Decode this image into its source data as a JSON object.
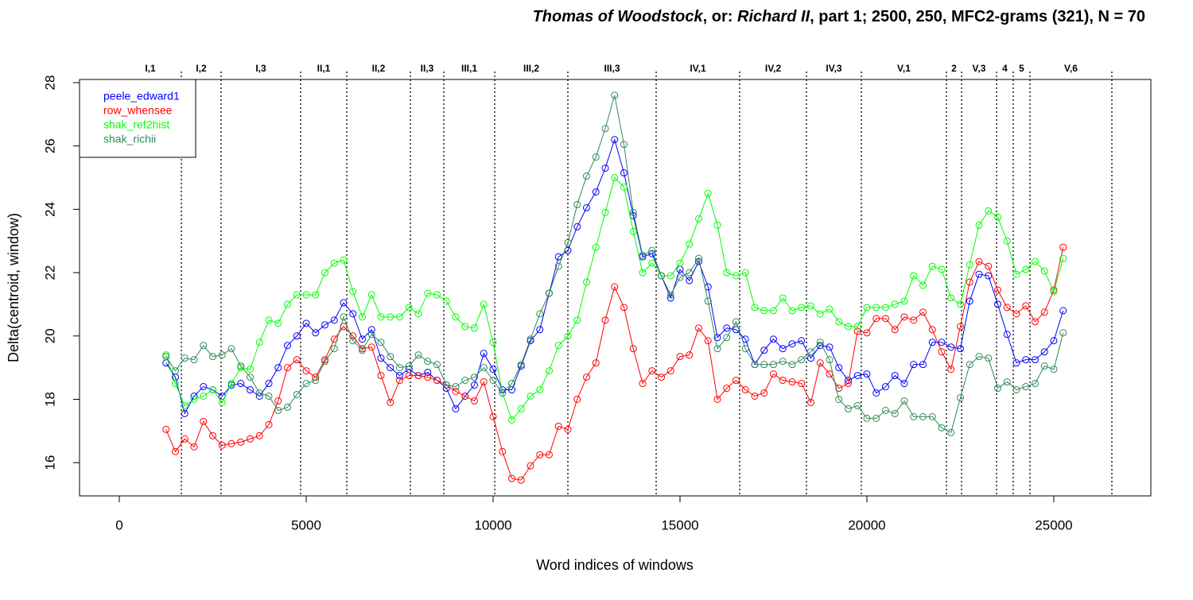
{
  "chart_data": {
    "type": "line",
    "title_parts": [
      {
        "text": "Thomas of Woodstock",
        "italic": true
      },
      {
        "text": ", or: ",
        "italic": false
      },
      {
        "text": "Richard II",
        "italic": true
      },
      {
        "text": ", part 1; 2500, 250, MFC2-grams (321), N = 70",
        "italic": false
      }
    ],
    "x_label": "Word indices of windows",
    "y_label": "Delta(centroid, window)",
    "xlim": [
      -1064,
      27596
    ],
    "ylim": [
      14.95,
      28.1
    ],
    "xticks": [
      0,
      5000,
      10000,
      15000,
      20000,
      25000
    ],
    "yticks": [
      16,
      18,
      20,
      22,
      24,
      26,
      28
    ],
    "legend": "top-left",
    "scenes": [
      {
        "label": "I,1",
        "start": 0,
        "end": 1660
      },
      {
        "label": "I,2",
        "start": 1660,
        "end": 2723
      },
      {
        "label": "I,3",
        "start": 2723,
        "end": 4851
      },
      {
        "label": "II,1",
        "start": 4851,
        "end": 6085
      },
      {
        "label": "II,2",
        "start": 6085,
        "end": 7787
      },
      {
        "label": "II,3",
        "start": 7787,
        "end": 8681
      },
      {
        "label": "III,1",
        "start": 8681,
        "end": 10043
      },
      {
        "label": "III,2",
        "start": 10043,
        "end": 12000
      },
      {
        "label": "III,3",
        "start": 12000,
        "end": 14362
      },
      {
        "label": "IV,1",
        "start": 14362,
        "end": 16596
      },
      {
        "label": "IV,2",
        "start": 16596,
        "end": 18383
      },
      {
        "label": "IV,3",
        "start": 18383,
        "end": 19851
      },
      {
        "label": "V,1",
        "start": 19851,
        "end": 22128
      },
      {
        "label": "2",
        "start": 22128,
        "end": 22532
      },
      {
        "label": "V,3",
        "start": 22532,
        "end": 23468
      },
      {
        "label": "4",
        "start": 23468,
        "end": 23915
      },
      {
        "label": "5",
        "start": 23915,
        "end": 24362
      },
      {
        "label": "V,6",
        "start": 24362,
        "end": 26553
      }
    ],
    "x": [
      1250,
      1500,
      1750,
      2000,
      2250,
      2500,
      2750,
      3000,
      3250,
      3500,
      3750,
      4000,
      4250,
      4500,
      4750,
      5000,
      5250,
      5500,
      5750,
      6000,
      6250,
      6500,
      6750,
      7000,
      7250,
      7500,
      7750,
      8000,
      8250,
      8500,
      8750,
      9000,
      9250,
      9500,
      9750,
      10000,
      10250,
      10500,
      10750,
      11000,
      11250,
      11500,
      11750,
      12000,
      12250,
      12500,
      12750,
      13000,
      13250,
      13500,
      13750,
      14000,
      14250,
      14500,
      14750,
      15000,
      15250,
      15500,
      15750,
      16000,
      16250,
      16500,
      16750,
      17000,
      17250,
      17500,
      17750,
      18000,
      18250,
      18500,
      18750,
      19000,
      19250,
      19500,
      19750,
      20000,
      20250,
      20500,
      20750,
      21000,
      21250,
      21500,
      21750,
      22000,
      22250,
      22500,
      22750,
      23000,
      23250,
      23500,
      23750,
      24000,
      24250,
      24500,
      24750,
      25000,
      25250
    ],
    "series": [
      {
        "name": "peele_edward1",
        "color": "#0000ff",
        "values": [
          19.15,
          18.7,
          17.55,
          18.1,
          18.4,
          18.3,
          18.1,
          18.45,
          18.5,
          18.3,
          18.1,
          18.5,
          19.0,
          19.7,
          20.0,
          20.4,
          20.1,
          20.35,
          20.5,
          21.05,
          20.7,
          19.9,
          20.2,
          19.3,
          19.0,
          18.75,
          18.95,
          18.75,
          18.85,
          18.6,
          18.35,
          17.7,
          18.1,
          18.45,
          19.45,
          18.95,
          18.3,
          18.3,
          19.05,
          19.85,
          20.2,
          21.35,
          22.5,
          22.7,
          23.45,
          24.05,
          24.55,
          25.3,
          26.2,
          25.15,
          23.8,
          22.5,
          22.6,
          21.9,
          21.2,
          22.1,
          21.75,
          22.35,
          21.55,
          19.95,
          20.25,
          20.2,
          19.9,
          19.1,
          19.55,
          19.9,
          19.6,
          19.75,
          19.85,
          19.3,
          19.7,
          19.65,
          19.0,
          18.6,
          18.75,
          18.8,
          18.2,
          18.4,
          18.75,
          18.5,
          19.1,
          19.1,
          19.8,
          19.8,
          19.65,
          19.6,
          21.1,
          21.95,
          21.9,
          21.0,
          20.05,
          19.15,
          19.25,
          19.25,
          19.5,
          19.85,
          20.8
        ]
      },
      {
        "name": "row_whensee",
        "color": "#ff0000",
        "values": [
          17.05,
          16.35,
          16.75,
          16.5,
          17.3,
          16.85,
          16.55,
          16.6,
          16.65,
          16.75,
          16.85,
          17.2,
          17.95,
          19.0,
          19.25,
          18.9,
          18.7,
          19.25,
          19.9,
          20.3,
          20.0,
          19.6,
          19.65,
          18.75,
          17.9,
          18.6,
          18.75,
          18.75,
          18.7,
          18.6,
          18.45,
          18.25,
          18.1,
          17.95,
          18.55,
          17.45,
          16.35,
          15.5,
          15.45,
          15.9,
          16.25,
          16.25,
          17.15,
          17.05,
          18.0,
          18.7,
          19.15,
          20.5,
          21.55,
          20.9,
          19.6,
          18.5,
          18.9,
          18.7,
          18.9,
          19.35,
          19.4,
          20.25,
          19.85,
          18.0,
          18.35,
          18.6,
          18.3,
          18.1,
          18.2,
          18.8,
          18.6,
          18.55,
          18.5,
          17.9,
          19.15,
          18.8,
          18.35,
          18.5,
          20.15,
          20.1,
          20.55,
          20.55,
          20.2,
          20.6,
          20.5,
          20.75,
          20.2,
          19.5,
          18.95,
          20.3,
          21.7,
          22.35,
          22.2,
          21.45,
          20.9,
          20.7,
          20.95,
          20.45,
          20.75,
          21.45,
          22.8
        ]
      },
      {
        "name": "shak_ref2hist",
        "color": "#00ff00",
        "values": [
          19.4,
          18.5,
          17.8,
          18.0,
          18.1,
          18.3,
          17.9,
          18.5,
          19.0,
          18.95,
          19.8,
          20.5,
          20.4,
          21.0,
          21.3,
          21.3,
          21.3,
          22.0,
          22.3,
          22.4,
          21.4,
          20.6,
          21.3,
          20.6,
          20.6,
          20.6,
          20.9,
          20.7,
          21.35,
          21.3,
          21.1,
          20.6,
          20.3,
          20.25,
          21.0,
          19.8,
          18.2,
          17.35,
          17.7,
          18.1,
          18.3,
          18.9,
          19.7,
          20.0,
          20.5,
          21.7,
          22.8,
          23.9,
          25.0,
          24.7,
          23.3,
          22.0,
          22.3,
          21.9,
          21.9,
          22.3,
          22.9,
          23.7,
          24.5,
          23.5,
          22.0,
          21.9,
          22.0,
          20.9,
          20.8,
          20.8,
          21.2,
          20.8,
          20.9,
          20.95,
          20.7,
          20.85,
          20.45,
          20.3,
          20.3,
          20.9,
          20.9,
          20.9,
          21.0,
          21.1,
          21.9,
          21.6,
          22.2,
          22.1,
          21.2,
          21.0,
          22.25,
          23.5,
          23.95,
          23.75,
          23.0,
          21.95,
          22.1,
          22.35,
          22.05,
          21.4,
          22.45
        ]
      },
      {
        "name": "shak_richii",
        "color": "#2e8b57",
        "values": [
          19.35,
          18.9,
          19.3,
          19.25,
          19.7,
          19.35,
          19.4,
          19.6,
          19.05,
          18.7,
          18.2,
          18.1,
          17.65,
          17.75,
          18.15,
          18.5,
          18.6,
          19.2,
          19.6,
          20.6,
          19.85,
          19.55,
          20.05,
          19.8,
          19.35,
          19.0,
          19.05,
          19.4,
          19.2,
          19.1,
          18.45,
          18.4,
          18.6,
          18.7,
          19.0,
          18.6,
          18.2,
          18.5,
          19.1,
          19.9,
          20.7,
          21.35,
          22.2,
          22.95,
          24.15,
          25.05,
          25.65,
          26.55,
          27.6,
          26.05,
          23.9,
          22.55,
          22.7,
          21.9,
          21.3,
          21.85,
          22.0,
          22.45,
          21.1,
          19.6,
          19.95,
          20.45,
          19.6,
          19.1,
          19.1,
          19.1,
          19.2,
          19.1,
          19.25,
          19.5,
          19.8,
          19.25,
          18.0,
          17.7,
          17.8,
          17.4,
          17.4,
          17.65,
          17.55,
          17.95,
          17.45,
          17.45,
          17.45,
          17.1,
          16.95,
          18.05,
          19.1,
          19.35,
          19.3,
          18.35,
          18.55,
          18.3,
          18.4,
          18.5,
          19.05,
          18.95,
          20.1
        ]
      }
    ]
  }
}
